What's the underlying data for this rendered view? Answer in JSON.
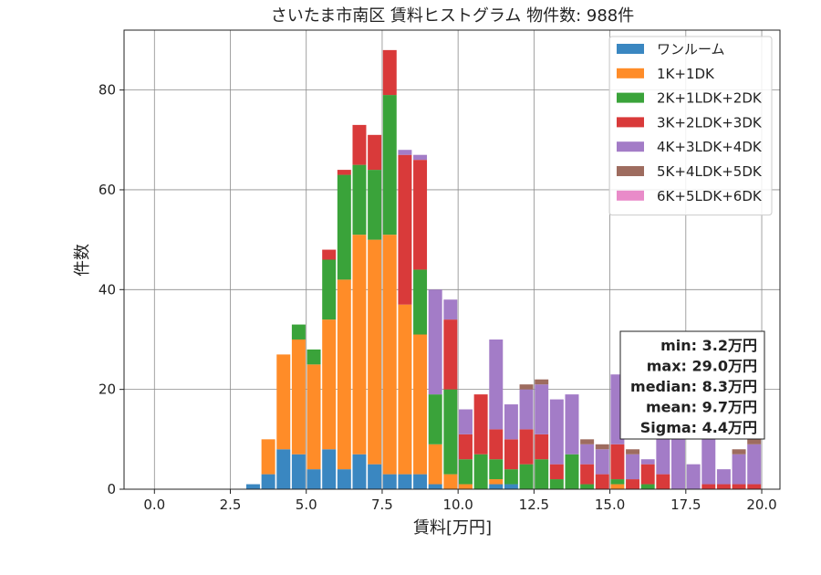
{
  "chart_data": {
    "type": "bar",
    "stacked": true,
    "title": "さいたま市南区 賃料ヒストグラム 物件数: 988件",
    "xlabel": "賃料[万円]",
    "ylabel": "件数",
    "xlim": [
      -1.0,
      20.6
    ],
    "ylim": [
      0,
      92
    ],
    "bin_width": 0.5,
    "x_ticks": [
      0.0,
      2.5,
      5.0,
      7.5,
      10.0,
      12.5,
      15.0,
      17.5,
      20.0
    ],
    "x_tick_labels": [
      "0.0",
      "2.5",
      "5.0",
      "7.5",
      "10.0",
      "12.5",
      "15.0",
      "17.5",
      "20.0"
    ],
    "y_ticks": [
      0,
      20,
      40,
      60,
      80
    ],
    "y_tick_labels": [
      "0",
      "20",
      "40",
      "60",
      "80"
    ],
    "grid": true,
    "legend_position": "top-right",
    "bin_starts": [
      3.0,
      3.5,
      4.0,
      4.5,
      5.0,
      5.5,
      6.0,
      6.5,
      7.0,
      7.5,
      8.0,
      8.5,
      9.0,
      9.5,
      10.0,
      10.5,
      11.0,
      11.5,
      12.0,
      12.5,
      13.0,
      13.5,
      14.0,
      14.5,
      15.0,
      15.5,
      16.0,
      16.5,
      17.0,
      17.5,
      18.0,
      18.5,
      19.0,
      19.5
    ],
    "series": [
      {
        "name": "ワンルーム",
        "color": "#3a87c1",
        "values": [
          1,
          3,
          8,
          7,
          4,
          8,
          4,
          7,
          5,
          3,
          3,
          3,
          1,
          0,
          0,
          0,
          1,
          1,
          0,
          0,
          0,
          0,
          0,
          0,
          0,
          0,
          0,
          0,
          0,
          0,
          0,
          0,
          0,
          0
        ]
      },
      {
        "name": "1K+1DK",
        "color": "#ff8c28",
        "values": [
          0,
          7,
          19,
          23,
          21,
          26,
          38,
          44,
          45,
          48,
          34,
          28,
          8,
          3,
          1,
          0,
          1,
          0,
          0,
          0,
          0,
          0,
          0,
          0,
          1,
          0,
          0,
          0,
          0,
          0,
          0,
          0,
          0,
          0
        ]
      },
      {
        "name": "2K+1LDK+2DK",
        "color": "#3aa33a",
        "values": [
          0,
          0,
          0,
          3,
          3,
          12,
          21,
          14,
          14,
          28,
          0,
          13,
          10,
          17,
          5,
          7,
          4,
          3,
          5,
          6,
          2,
          7,
          1,
          0,
          1,
          0,
          1,
          0,
          0,
          0,
          0,
          0,
          0,
          0
        ]
      },
      {
        "name": "3K+2LDK+3DK",
        "color": "#d93a3a",
        "values": [
          0,
          0,
          0,
          0,
          0,
          2,
          1,
          8,
          7,
          9,
          30,
          22,
          0,
          14,
          5,
          12,
          6,
          6,
          7,
          5,
          3,
          0,
          4,
          3,
          7,
          2,
          4,
          3,
          0,
          0,
          1,
          1,
          1,
          1
        ]
      },
      {
        "name": "4K+3LDK+4DK",
        "color": "#a37cc7",
        "values": [
          0,
          0,
          0,
          0,
          0,
          0,
          0,
          0,
          0,
          0,
          1,
          1,
          21,
          4,
          5,
          0,
          18,
          7,
          8,
          10,
          13,
          12,
          4,
          5,
          14,
          5,
          1,
          13,
          11,
          5,
          14,
          3,
          6,
          8
        ]
      },
      {
        "name": "5K+4LDK+5DK",
        "color": "#9e6c5f",
        "values": [
          0,
          0,
          0,
          0,
          0,
          0,
          0,
          0,
          0,
          0,
          0,
          0,
          0,
          0,
          0,
          0,
          0,
          0,
          1,
          1,
          0,
          0,
          1,
          1,
          0,
          1,
          0,
          0,
          0,
          0,
          0,
          0,
          1,
          1
        ]
      },
      {
        "name": "6K+5LDK+6DK",
        "color": "#e98bc9",
        "values": [
          0,
          0,
          0,
          0,
          0,
          0,
          0,
          0,
          0,
          0,
          0,
          0,
          0,
          0,
          0,
          0,
          0,
          0,
          0,
          0,
          0,
          0,
          0,
          0,
          0,
          0,
          0,
          0,
          0,
          0,
          0,
          0,
          0,
          0
        ]
      }
    ],
    "stats": [
      "min: 3.2万円",
      "max: 29.0万円",
      "median: 8.3万円",
      "mean: 9.7万円",
      "Sigma: 4.4万円"
    ]
  }
}
